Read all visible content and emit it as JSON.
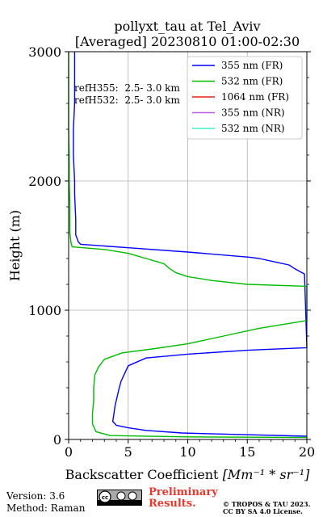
{
  "chart_data": {
    "type": "line",
    "title": "pollyxt_tau at Tel_Aviv",
    "subtitle": "[Averaged] 20230810 01:00-02:30",
    "xlabel_prefix": "Backscatter Coefficient ",
    "xlabel_math": "[Mm⁻¹ * sr⁻¹]",
    "ylabel": "Height (m)",
    "xlim": [
      0,
      20
    ],
    "ylim": [
      0,
      3000
    ],
    "xticks": [
      0,
      5,
      10,
      15,
      20
    ],
    "yticks": [
      0,
      1000,
      2000,
      3000
    ],
    "grid": true,
    "legend_position": "top-right",
    "annotations": [
      "refH355:  2.5- 3.0 km",
      "refH532:  2.5- 3.0 km"
    ],
    "series": [
      {
        "name": "355 nm (FR)",
        "color": "#0000ff",
        "x": [
          20,
          13.5,
          9.5,
          6.5,
          5.0,
          4.0,
          3.7,
          3.8,
          3.9,
          4.2,
          4.4,
          4.8,
          5.0,
          6.5,
          10.0,
          15.0,
          20.0,
          19.8,
          19.0,
          18.5,
          17.5,
          16.0,
          15.2,
          10.0,
          5.5,
          1.0,
          0.8,
          0.7,
          0.6,
          0.6,
          0.5,
          0.5,
          0.4,
          0.4,
          0.5,
          0.5,
          0.5
        ],
        "y": [
          25,
          40,
          50,
          70,
          90,
          110,
          140,
          200,
          260,
          380,
          450,
          530,
          570,
          630,
          660,
          690,
          710,
          1280,
          1320,
          1350,
          1370,
          1400,
          1410,
          1450,
          1480,
          1510,
          1530,
          1560,
          1580,
          1700,
          1900,
          2000,
          2200,
          2400,
          2600,
          2800,
          3000
        ]
      },
      {
        "name": "532 nm (FR)",
        "color": "#00bb00",
        "x": [
          20,
          10.0,
          3.5,
          2.3,
          2.0,
          2.0,
          2.1,
          2.1,
          2.2,
          2.5,
          3.0,
          4.5,
          7.0,
          10.0,
          13.0,
          16.0,
          20.0,
          20.0,
          15.0,
          12.0,
          10.0,
          9.0,
          8.5,
          8.0,
          6.5,
          5.0,
          3.0,
          0.3,
          0.2,
          0.1,
          0.1,
          0.05,
          0.05,
          0.0,
          0.0,
          0.0,
          0.0
        ],
        "y": [
          15,
          20,
          30,
          60,
          120,
          200,
          300,
          400,
          500,
          560,
          620,
          670,
          700,
          740,
          800,
          860,
          920,
          1185,
          1200,
          1230,
          1260,
          1290,
          1320,
          1360,
          1400,
          1440,
          1470,
          1490,
          1520,
          1600,
          1800,
          2000,
          2200,
          2400,
          2600,
          2800,
          3000
        ]
      },
      {
        "name": "1064 nm (FR)",
        "color": "#e8201a",
        "x": [],
        "y": []
      },
      {
        "name": "355 nm (NR)",
        "color": "#b45ae6",
        "x": [],
        "y": []
      },
      {
        "name": "532 nm (NR)",
        "color": "#3ef2c8",
        "x": [],
        "y": []
      }
    ]
  },
  "footer": {
    "version": "Version: 3.6",
    "method": "Method: Raman",
    "preliminary_line1": "Preliminary",
    "preliminary_line2": "Results.",
    "copyright_line1": "© TROPOS & TAU 2023.",
    "copyright_line2": "CC BY SA 4.0 License."
  }
}
